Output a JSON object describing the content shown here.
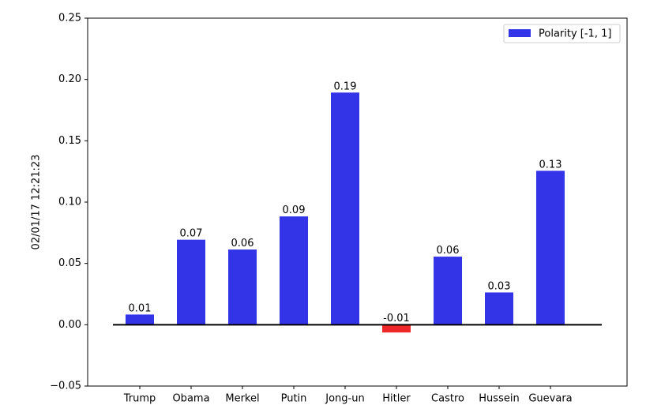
{
  "chart_data": {
    "type": "bar",
    "ylabel": "02/01/17 12:21:23",
    "categories": [
      "Trump",
      "Obama",
      "Merkel",
      "Putin",
      "Jong-un",
      "Hitler",
      "Castro",
      "Hussein",
      "Guevara"
    ],
    "series": [
      {
        "name": "Polarity [-1, 1]",
        "color": "#3333e8",
        "colors": [
          "#3333e8",
          "#3333e8",
          "#3333e8",
          "#3333e8",
          "#3333e8",
          "#ee2828",
          "#3333e8",
          "#3333e8",
          "#3333e8"
        ],
        "values": [
          0.008,
          0.069,
          0.061,
          0.088,
          0.189,
          -0.006,
          0.0552,
          0.026,
          0.1252
        ],
        "value_labels": [
          "0.01",
          "0.07",
          "0.06",
          "0.09",
          "0.19",
          "-0.01",
          "0.06",
          "0.03",
          "0.13"
        ]
      }
    ],
    "ylim": [
      -0.05,
      0.25
    ],
    "yticks": [
      {
        "value": -0.05,
        "label": "−0.05"
      },
      {
        "value": 0,
        "label": "0.00"
      },
      {
        "value": 0.05,
        "label": "0.05"
      },
      {
        "value": 0.1,
        "label": "0.10"
      },
      {
        "value": 0.15,
        "label": "0.15"
      },
      {
        "value": 0.2,
        "label": "0.20"
      },
      {
        "value": 0.25,
        "label": "0.25"
      }
    ],
    "legend": "upper right"
  }
}
